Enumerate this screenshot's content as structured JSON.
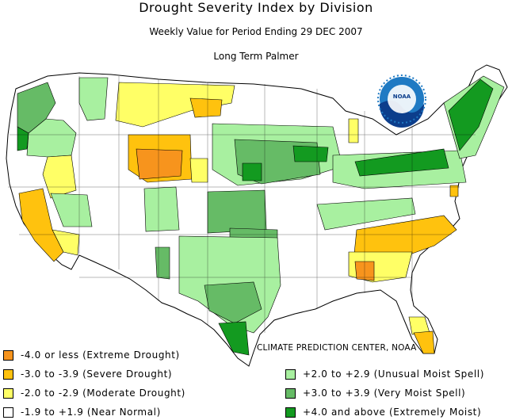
{
  "title": "Drought Severity Index by Division",
  "subtitle": "Weekly Value for Period Ending 29 DEC 2007",
  "index_name": "Long Term Palmer",
  "logo_text": "NOAA",
  "credit": "CLIMATE PREDICTION CENTER, NOAA",
  "colors": {
    "extreme_drought": "#f7941d",
    "severe_drought": "#ffc20e",
    "moderate_drought": "#ffff66",
    "near_normal": "#ffffff",
    "unusual_moist": "#a8f0a0",
    "very_moist": "#66bb66",
    "extremely_moist": "#139a20"
  },
  "legend": {
    "left": [
      {
        "label": "-4.0 or less (Extreme Drought)",
        "color": "#f7941d"
      },
      {
        "label": "-3.0 to -3.9 (Severe Drought)",
        "color": "#ffc20e"
      },
      {
        "label": "-2.0 to -2.9 (Moderate Drought)",
        "color": "#ffff66"
      },
      {
        "label": "-1.9 to +1.9 (Near Normal)",
        "color": "#ffffff"
      }
    ],
    "right": [
      {
        "label": "+2.0 to +2.9 (Unusual Moist Spell)",
        "color": "#a8f0a0"
      },
      {
        "label": "+3.0 to +3.9 (Very Moist Spell)",
        "color": "#66bb66"
      },
      {
        "label": "+4.0 and above (Extremely Moist)",
        "color": "#139a20"
      }
    ]
  }
}
